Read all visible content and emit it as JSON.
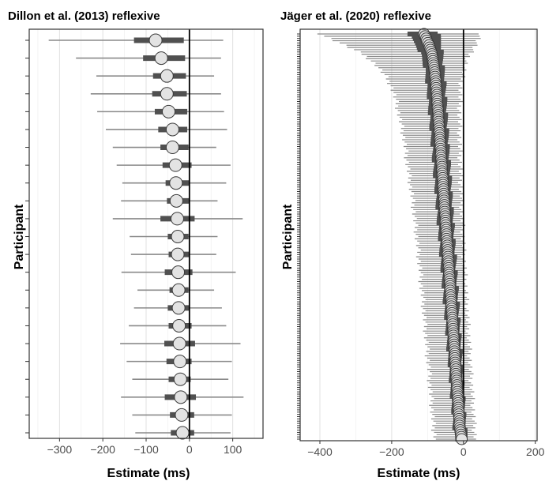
{
  "chart_data": [
    {
      "type": "forest",
      "title": "Dillon et al. (2013) reflexive",
      "xlabel": "Estimate (ms)",
      "ylabel": "Participant",
      "xlim": [
        -370,
        170
      ],
      "xticks": [
        -300,
        -200,
        -100,
        0,
        100
      ],
      "xtick_labels": [
        "−300",
        "−200",
        "−100",
        "0",
        "100"
      ],
      "reference_line": 0,
      "grid": "vertical",
      "participants": [
        {
          "estimate": -78,
          "inner": [
            -128,
            -13
          ],
          "outer": [
            -325,
            78
          ]
        },
        {
          "estimate": -65,
          "inner": [
            -107,
            -10
          ],
          "outer": [
            -262,
            73
          ]
        },
        {
          "estimate": -52,
          "inner": [
            -84,
            -8
          ],
          "outer": [
            -215,
            57
          ]
        },
        {
          "estimate": -52,
          "inner": [
            -86,
            -6
          ],
          "outer": [
            -228,
            73
          ]
        },
        {
          "estimate": -48,
          "inner": [
            -80,
            -5
          ],
          "outer": [
            -213,
            80
          ]
        },
        {
          "estimate": -39,
          "inner": [
            -72,
            -5
          ],
          "outer": [
            -193,
            87
          ]
        },
        {
          "estimate": -39,
          "inner": [
            -67,
            -2
          ],
          "outer": [
            -177,
            62
          ]
        },
        {
          "estimate": -32,
          "inner": [
            -62,
            5
          ],
          "outer": [
            -168,
            95
          ]
        },
        {
          "estimate": -31,
          "inner": [
            -55,
            0
          ],
          "outer": [
            -155,
            85
          ]
        },
        {
          "estimate": -30,
          "inner": [
            -52,
            0
          ],
          "outer": [
            -158,
            65
          ]
        },
        {
          "estimate": -28,
          "inner": [
            -67,
            12
          ],
          "outer": [
            -177,
            123
          ]
        },
        {
          "estimate": -27,
          "inner": [
            -50,
            -2
          ],
          "outer": [
            -138,
            65
          ]
        },
        {
          "estimate": -27,
          "inner": [
            -48,
            0
          ],
          "outer": [
            -135,
            62
          ]
        },
        {
          "estimate": -26,
          "inner": [
            -57,
            7
          ],
          "outer": [
            -157,
            107
          ]
        },
        {
          "estimate": -25,
          "inner": [
            -46,
            -2
          ],
          "outer": [
            -120,
            57
          ]
        },
        {
          "estimate": -25,
          "inner": [
            -50,
            0
          ],
          "outer": [
            -128,
            75
          ]
        },
        {
          "estimate": -24,
          "inner": [
            -48,
            5
          ],
          "outer": [
            -140,
            85
          ]
        },
        {
          "estimate": -23,
          "inner": [
            -58,
            13
          ],
          "outer": [
            -160,
            118
          ]
        },
        {
          "estimate": -22,
          "inner": [
            -53,
            5
          ],
          "outer": [
            -145,
            98
          ]
        },
        {
          "estimate": -21,
          "inner": [
            -48,
            3
          ],
          "outer": [
            -132,
            90
          ]
        },
        {
          "estimate": -20,
          "inner": [
            -57,
            15
          ],
          "outer": [
            -158,
            125
          ]
        },
        {
          "estimate": -18,
          "inner": [
            -45,
            11
          ],
          "outer": [
            -132,
            98
          ]
        },
        {
          "estimate": -16,
          "inner": [
            -43,
            11
          ],
          "outer": [
            -125,
            95
          ]
        }
      ]
    },
    {
      "type": "forest",
      "title": "Jäger et al. (2020) reflexive",
      "xlabel": "Estimate (ms)",
      "ylabel": "Participant",
      "xlim": [
        -455,
        205
      ],
      "xticks": [
        -400,
        -200,
        0,
        200
      ],
      "xtick_labels": [
        "−400",
        "−200",
        "0",
        "200"
      ],
      "reference_line": 0,
      "grid": "vertical",
      "n_participants": 181,
      "participant_estimates": [
        -110,
        -97,
        -88,
        -83,
        -79,
        -76,
        -74,
        -72,
        -70,
        -68,
        -66,
        -64,
        -62,
        -60,
        -58,
        -56,
        -54,
        -52,
        -50,
        -48,
        -46,
        -44,
        -42,
        -40,
        -38,
        -36,
        -34,
        -32,
        -30,
        -28,
        -26,
        -24,
        -22,
        -20,
        -18,
        -16,
        -14,
        -12,
        -10,
        -5
      ],
      "participant_inner_halfwidth": [
        42,
        35,
        30,
        27,
        26,
        26,
        25,
        25,
        24,
        24,
        24,
        23,
        23,
        23,
        23,
        22,
        22,
        22,
        22,
        21,
        21,
        21,
        21,
        20,
        20,
        20,
        20,
        19,
        19,
        19,
        19,
        19,
        18,
        18,
        18,
        18,
        18,
        17,
        17,
        17
      ],
      "participant_outer_halfwidth": [
        290,
        240,
        190,
        160,
        140,
        125,
        118,
        112,
        108,
        104,
        100,
        98,
        96,
        94,
        92,
        90,
        88,
        86,
        85,
        84,
        83,
        82,
        81,
        80,
        80,
        79,
        78,
        78,
        77,
        77,
        76,
        76,
        75,
        75,
        75,
        74,
        74,
        74,
        73,
        72
      ]
    }
  ]
}
